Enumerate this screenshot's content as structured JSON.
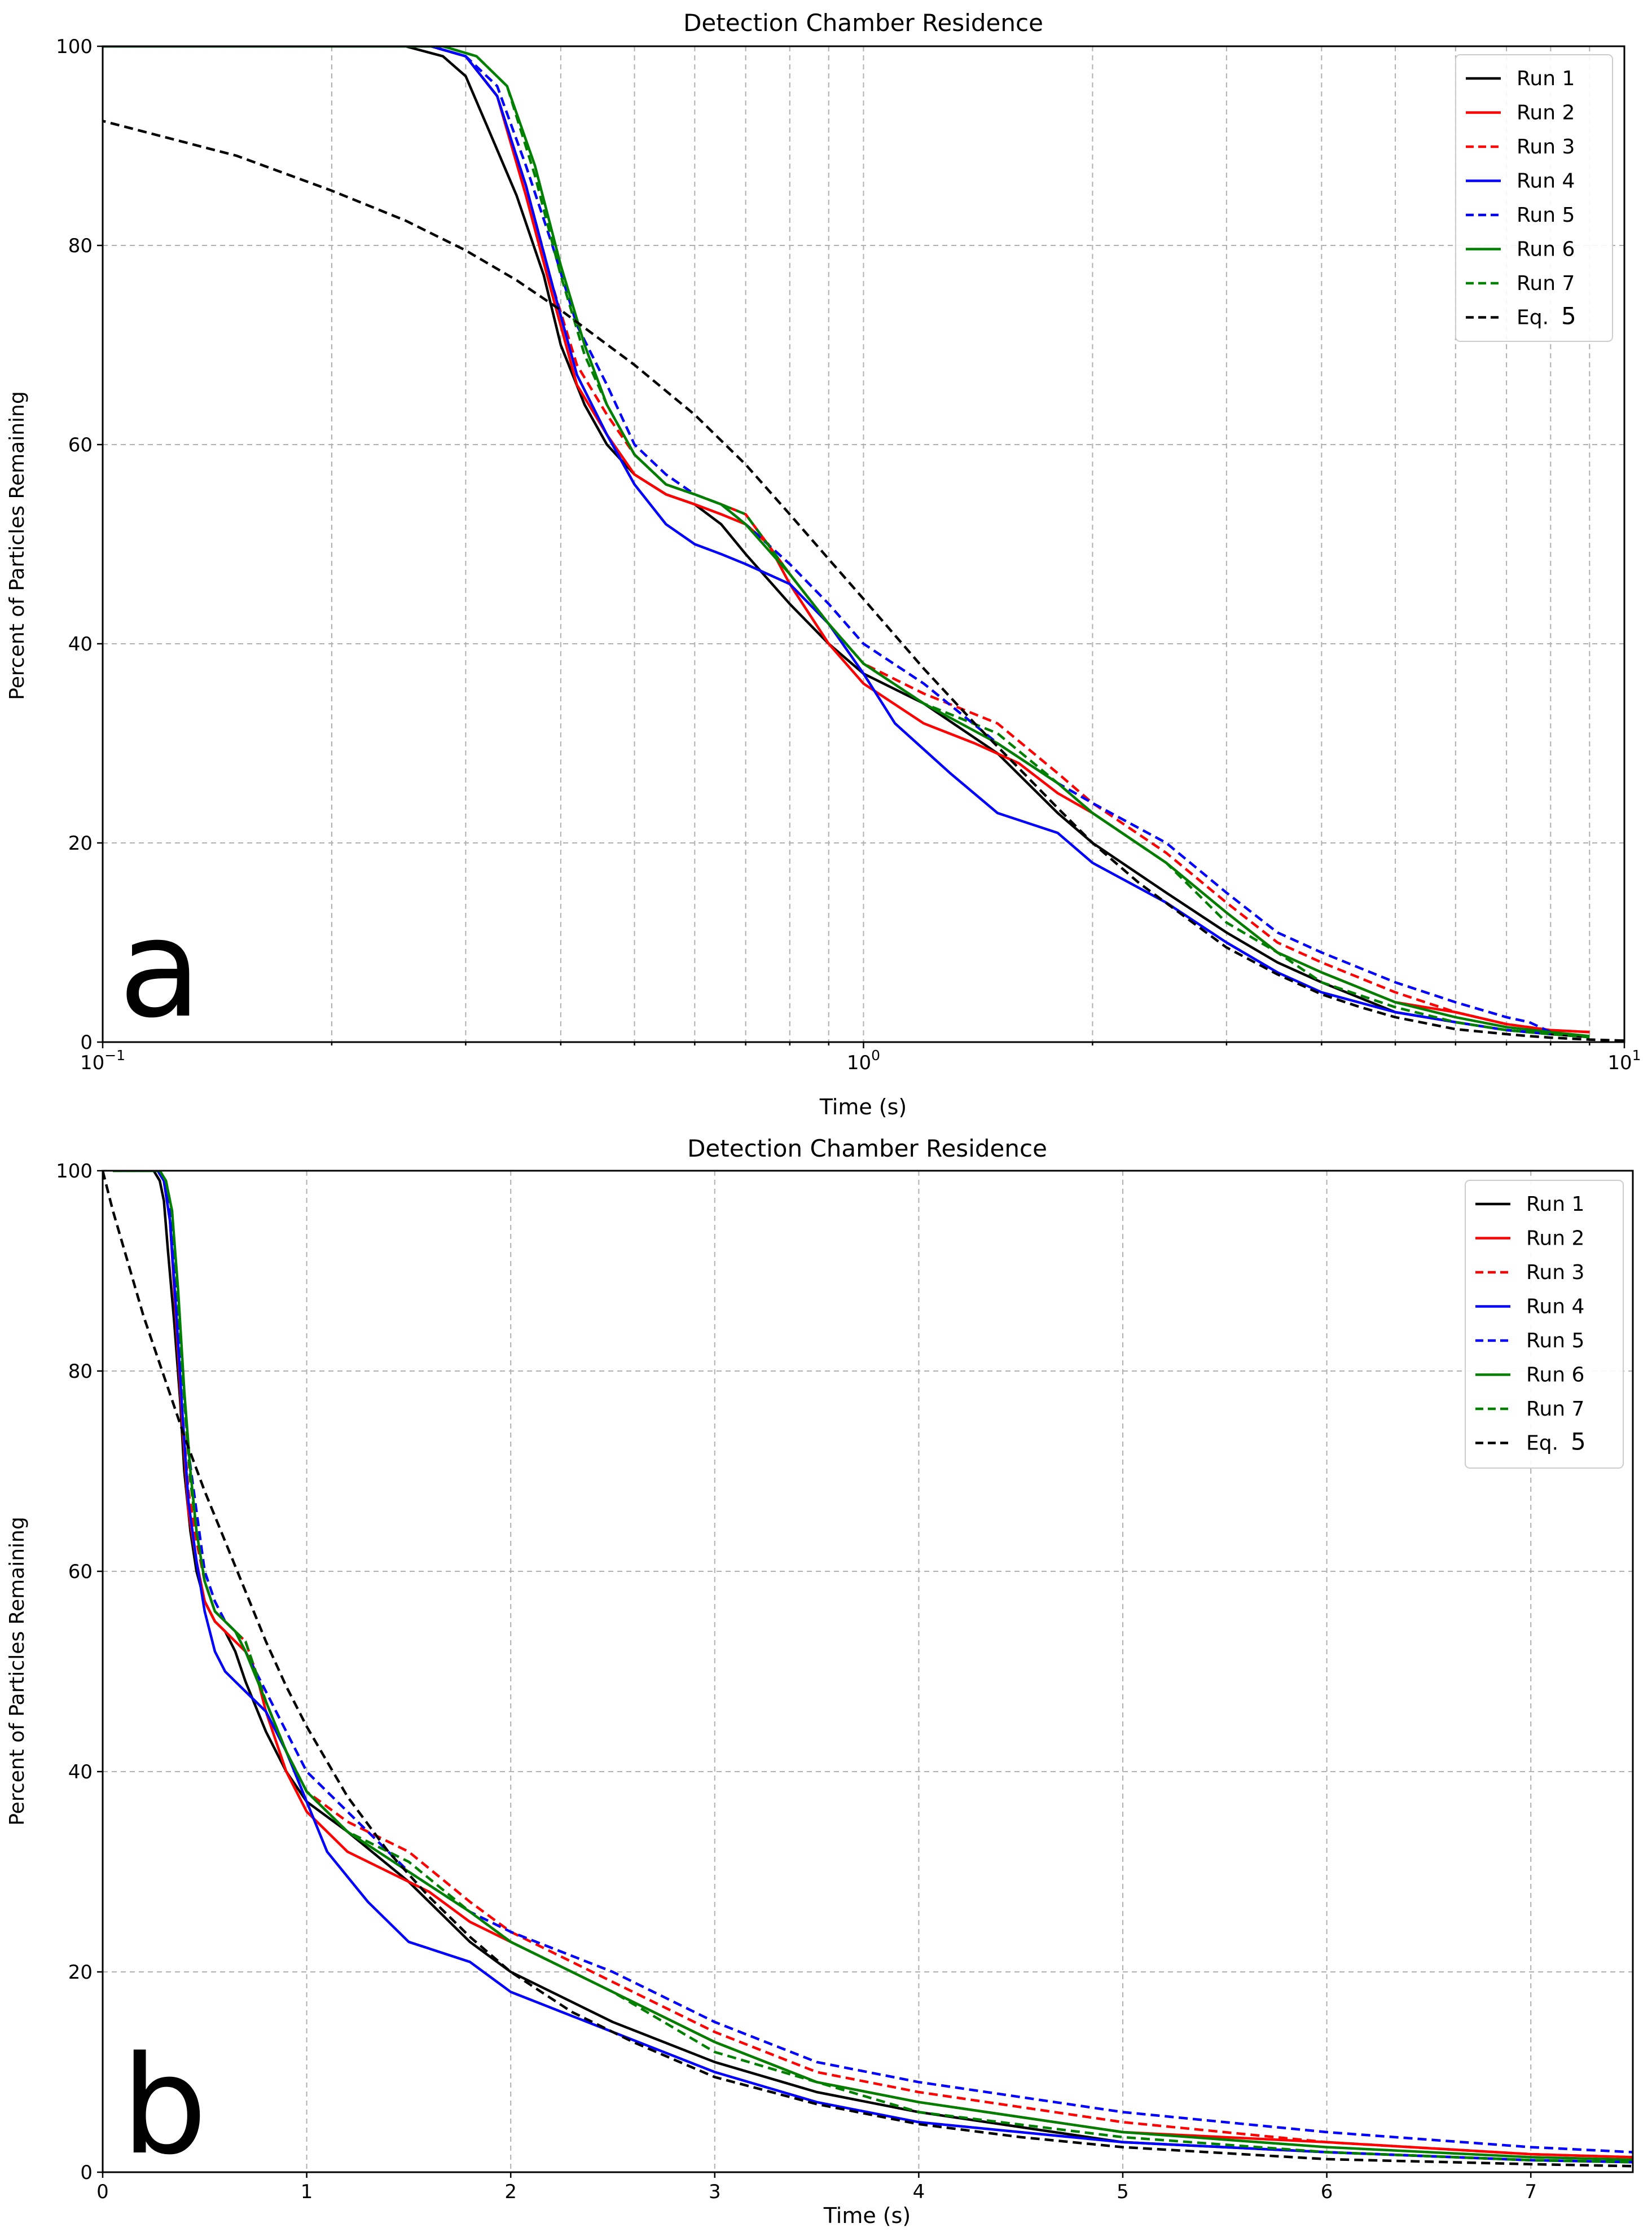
{
  "chart_data": [
    {
      "type": "line",
      "panel_label": "a",
      "title": "Detection Chamber Residence",
      "xlabel": "Time (s)",
      "ylabel": "Percent of Particles Remaining",
      "xscale": "log",
      "xlim": [
        0.1,
        10
      ],
      "ylim": [
        0,
        100
      ],
      "grid": true,
      "legend_position": "top-right",
      "xticks": [
        {
          "value": 0.1,
          "base": "10",
          "exp": "−1"
        },
        {
          "value": 1,
          "base": "10",
          "exp": "0"
        },
        {
          "value": 10,
          "base": "10",
          "exp": "1"
        }
      ],
      "yticks": [
        {
          "value": 0,
          "label": "0"
        },
        {
          "value": 20,
          "label": "20"
        },
        {
          "value": 40,
          "label": "40"
        },
        {
          "value": 60,
          "label": "60"
        },
        {
          "value": 80,
          "label": "80"
        },
        {
          "value": 100,
          "label": "100"
        }
      ],
      "legend_series": [
        "run1",
        "run2",
        "run3",
        "run4",
        "run5",
        "run6",
        "run7",
        "eq"
      ]
    },
    {
      "type": "line",
      "panel_label": "b",
      "title": "Detection Chamber Residence",
      "xlabel": "Time (s)",
      "ylabel": "Percent of Particles Remaining",
      "xscale": "linear",
      "xlim": [
        0,
        7.5
      ],
      "ylim": [
        0,
        100
      ],
      "grid": true,
      "legend_position": "top-right",
      "xticks": [
        {
          "value": 0,
          "label": "0"
        },
        {
          "value": 1,
          "label": "1"
        },
        {
          "value": 2,
          "label": "2"
        },
        {
          "value": 3,
          "label": "3"
        },
        {
          "value": 4,
          "label": "4"
        },
        {
          "value": 5,
          "label": "5"
        },
        {
          "value": 6,
          "label": "6"
        },
        {
          "value": 7,
          "label": "7"
        }
      ],
      "yticks": [
        {
          "value": 0,
          "label": "0"
        },
        {
          "value": 20,
          "label": "20"
        },
        {
          "value": 40,
          "label": "40"
        },
        {
          "value": 60,
          "label": "60"
        },
        {
          "value": 80,
          "label": "80"
        },
        {
          "value": 100,
          "label": "100"
        }
      ],
      "legend_series": [
        "run1",
        "run2",
        "run3",
        "run4",
        "run5",
        "run6",
        "run7",
        "eq"
      ]
    }
  ],
  "series": [
    {
      "key": "run1",
      "name": "Run 1",
      "color": "#000000",
      "dash": "solid",
      "x": [
        0.05,
        0.25,
        0.28,
        0.3,
        0.32,
        0.35,
        0.38,
        0.4,
        0.43,
        0.46,
        0.5,
        0.55,
        0.6,
        0.65,
        0.7,
        0.8,
        0.9,
        1.0,
        1.2,
        1.5,
        1.8,
        2.0,
        2.5,
        3.0,
        3.5,
        4.0,
        5.0,
        6.0,
        7.0,
        8.0,
        9.0
      ],
      "y": [
        100,
        100,
        99,
        97,
        92,
        85,
        77,
        70,
        64,
        60,
        57,
        55,
        54,
        52,
        49,
        44,
        40,
        37,
        34,
        29,
        23,
        20,
        15,
        11,
        8,
        6,
        3,
        2,
        1.2,
        0.8,
        0.5
      ]
    },
    {
      "key": "run2",
      "name": "Run 2",
      "color": "#ff0000",
      "dash": "solid",
      "x": [
        0.05,
        0.27,
        0.3,
        0.33,
        0.36,
        0.39,
        0.42,
        0.46,
        0.5,
        0.55,
        0.6,
        0.65,
        0.7,
        0.75,
        0.8,
        0.9,
        1.0,
        1.2,
        1.4,
        1.6,
        1.8,
        2.0,
        2.5,
        3.0,
        3.5,
        4.0,
        5.0,
        6.0,
        7.0,
        8.0,
        9.0
      ],
      "y": [
        100,
        100,
        99,
        95,
        85,
        75,
        66,
        61,
        57,
        55,
        54,
        53,
        52,
        50,
        46,
        40,
        36,
        32,
        30,
        28,
        25,
        23,
        18,
        13,
        9,
        7,
        4,
        3,
        1.8,
        1.2,
        1.0
      ]
    },
    {
      "key": "run3",
      "name": "Run 3",
      "color": "#ff0000",
      "dash": "dashed",
      "x": [
        0.05,
        0.27,
        0.3,
        0.33,
        0.36,
        0.39,
        0.42,
        0.46,
        0.5,
        0.55,
        0.6,
        0.65,
        0.7,
        0.8,
        0.9,
        1.0,
        1.2,
        1.5,
        1.8,
        2.0,
        2.5,
        3.0,
        3.5,
        4.0,
        5.0,
        6.0,
        7.0,
        8.0,
        9.0
      ],
      "y": [
        100,
        100,
        99,
        95,
        86,
        76,
        68,
        63,
        59,
        56,
        55,
        54,
        53,
        47,
        42,
        38,
        35,
        32,
        27,
        24,
        19,
        14,
        10,
        8,
        5,
        3,
        1.8,
        1.2,
        1.0
      ]
    },
    {
      "key": "run4",
      "name": "Run 4",
      "color": "#0000ff",
      "dash": "solid",
      "x": [
        0.05,
        0.27,
        0.3,
        0.33,
        0.36,
        0.39,
        0.42,
        0.46,
        0.5,
        0.55,
        0.6,
        0.65,
        0.7,
        0.8,
        0.9,
        1.0,
        1.1,
        1.3,
        1.5,
        1.8,
        2.0,
        2.5,
        3.0,
        3.5,
        4.0,
        5.0,
        6.0,
        7.0,
        8.0
      ],
      "y": [
        100,
        100,
        99,
        95,
        86,
        76,
        67,
        61,
        56,
        52,
        50,
        49,
        48,
        46,
        42,
        37,
        32,
        27,
        23,
        21,
        18,
        14,
        10,
        7,
        5,
        3,
        2,
        1.2,
        0.8
      ]
    },
    {
      "key": "run5",
      "name": "Run 5",
      "color": "#0000ff",
      "dash": "dashed",
      "x": [
        0.05,
        0.27,
        0.3,
        0.33,
        0.36,
        0.39,
        0.42,
        0.46,
        0.5,
        0.55,
        0.6,
        0.65,
        0.7,
        0.8,
        0.9,
        1.0,
        1.2,
        1.5,
        1.8,
        2.0,
        2.5,
        3.0,
        3.5,
        4.0,
        5.0,
        6.0,
        7.0,
        7.5,
        8.0
      ],
      "y": [
        100,
        100,
        99,
        96,
        88,
        80,
        72,
        66,
        60,
        57,
        55,
        54,
        52,
        48,
        44,
        40,
        36,
        30,
        26,
        24,
        20,
        15,
        11,
        9,
        6,
        4,
        2.5,
        2,
        1
      ]
    },
    {
      "key": "run6",
      "name": "Run 6",
      "color": "#008000",
      "dash": "solid",
      "x": [
        0.05,
        0.28,
        0.31,
        0.34,
        0.37,
        0.4,
        0.43,
        0.46,
        0.5,
        0.55,
        0.6,
        0.65,
        0.7,
        0.8,
        0.9,
        1.0,
        1.2,
        1.5,
        1.8,
        2.0,
        2.5,
        3.0,
        3.5,
        4.0,
        5.0,
        6.0,
        7.0,
        8.0,
        9.0
      ],
      "y": [
        100,
        100,
        99,
        96,
        88,
        78,
        70,
        64,
        59,
        56,
        55,
        54,
        52,
        47,
        42,
        38,
        34,
        30,
        26,
        23,
        18,
        13,
        9,
        7,
        4,
        2.5,
        1.5,
        1.0,
        0.6
      ]
    },
    {
      "key": "run7",
      "name": "Run 7",
      "color": "#008000",
      "dash": "dashed",
      "x": [
        0.05,
        0.28,
        0.31,
        0.34,
        0.37,
        0.4,
        0.43,
        0.46,
        0.5,
        0.55,
        0.6,
        0.65,
        0.7,
        0.8,
        0.9,
        1.0,
        1.2,
        1.5,
        1.8,
        2.0,
        2.5,
        3.0,
        3.5,
        4.0,
        5.0,
        6.0,
        7.0,
        8.0,
        9.0
      ],
      "y": [
        100,
        100,
        99,
        96,
        87,
        77,
        69,
        64,
        59,
        56,
        55,
        54,
        53,
        47,
        42,
        38,
        34,
        31,
        26,
        23,
        18,
        12,
        9,
        6,
        3.5,
        2,
        1.2,
        0.8,
        0.5
      ]
    },
    {
      "key": "eq",
      "name": "Eq.",
      "name_suffix": "5",
      "color": "#000000",
      "dash": "dashed",
      "x": [
        0.0,
        0.05,
        0.1,
        0.15,
        0.2,
        0.25,
        0.3,
        0.35,
        0.4,
        0.5,
        0.6,
        0.7,
        0.8,
        0.9,
        1.0,
        1.2,
        1.4,
        1.6,
        1.8,
        2.0,
        2.3,
        2.6,
        3.0,
        3.5,
        4.0,
        4.5,
        5.0,
        6.0,
        7.0,
        7.5,
        8.0,
        9.0,
        10.0
      ],
      "y": [
        100,
        96,
        92.5,
        89,
        85.5,
        82.5,
        79.5,
        76.5,
        73.5,
        68,
        63,
        58,
        53,
        48.5,
        44.5,
        37.5,
        32,
        27.5,
        23.5,
        20,
        16,
        13,
        9.5,
        6.8,
        4.8,
        3.5,
        2.5,
        1.3,
        0.8,
        0.6,
        0.45,
        0.25,
        0.15
      ]
    }
  ]
}
